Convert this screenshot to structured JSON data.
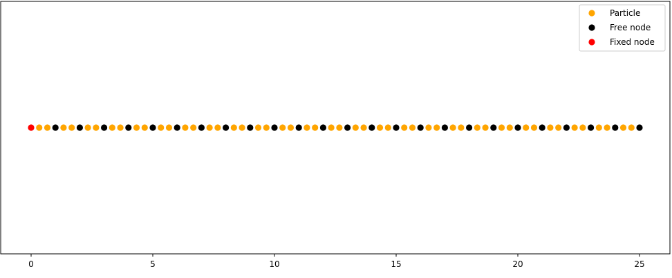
{
  "chart_data": {
    "type": "scatter",
    "title": "",
    "xlabel": "",
    "ylabel": "",
    "xlim": [
      -1.25,
      26.25
    ],
    "ylim": [
      -1,
      1
    ],
    "yticks_visible": false,
    "grid": false,
    "legend_placement": "top-right",
    "xticks": [
      0,
      5,
      10,
      15,
      20,
      25
    ],
    "xtick_labels": [
      "0",
      "5",
      "10",
      "15",
      "20",
      "25"
    ],
    "series": [
      {
        "name": "Particle",
        "color": "#ffa500",
        "x": [
          0.333,
          0.667,
          1.333,
          1.667,
          2.333,
          2.667,
          3.333,
          3.667,
          4.333,
          4.667,
          5.333,
          5.667,
          6.333,
          6.667,
          7.333,
          7.667,
          8.333,
          8.667,
          9.333,
          9.667,
          10.333,
          10.667,
          11.333,
          11.667,
          12.333,
          12.667,
          13.333,
          13.667,
          14.333,
          14.667,
          15.333,
          15.667,
          16.333,
          16.667,
          17.333,
          17.667,
          18.333,
          18.667,
          19.333,
          19.667,
          20.333,
          20.667,
          21.333,
          21.667,
          22.333,
          22.667,
          23.333,
          23.667,
          24.333,
          24.667
        ],
        "y_constant": 0
      },
      {
        "name": "Free node",
        "color": "#000000",
        "x": [
          1,
          2,
          3,
          4,
          5,
          6,
          7,
          8,
          9,
          10,
          11,
          12,
          13,
          14,
          15,
          16,
          17,
          18,
          19,
          20,
          21,
          22,
          23,
          24,
          25
        ],
        "y_constant": 0
      },
      {
        "name": "Fixed node",
        "color": "#ff0000",
        "x": [
          0
        ],
        "y_constant": 0
      }
    ]
  }
}
